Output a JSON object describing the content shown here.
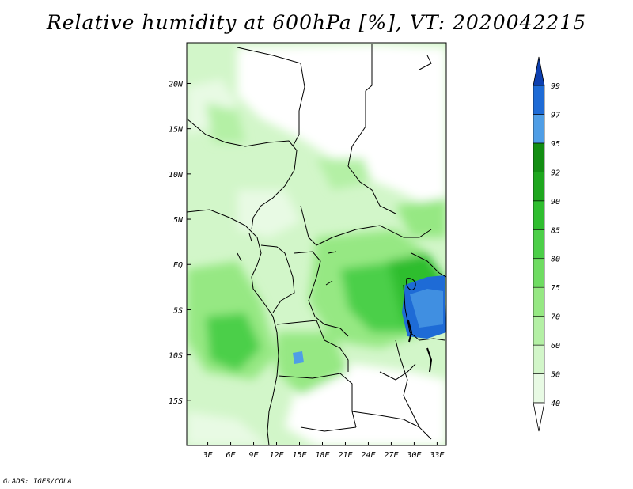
{
  "title": "Relative humidity at 600hPa [%], VT: 2020042215",
  "credit": "GrADS: IGES/COLA",
  "map": {
    "lat_labels": [
      "20N",
      "15N",
      "10N",
      "5N",
      "EQ",
      "5S",
      "10S",
      "15S"
    ],
    "lon_labels": [
      "3E",
      "6E",
      "9E",
      "12E",
      "15E",
      "18E",
      "21E",
      "24E",
      "27E",
      "30E",
      "33E"
    ],
    "lat_range": [
      -20,
      24.5
    ],
    "lon_range": [
      0.25,
      34.2
    ]
  },
  "colorbar": {
    "levels": [
      "40",
      "50",
      "60",
      "70",
      "75",
      "80",
      "85",
      "90",
      "92",
      "95",
      "97",
      "99"
    ],
    "colors": [
      "#ffffff",
      "#e8fae4",
      "#d2f6c9",
      "#b4f0a5",
      "#96e883",
      "#6fdc62",
      "#4ccf48",
      "#2fbe2f",
      "#1ea71e",
      "#138e13",
      "#4f9ee6",
      "#1e6bd6",
      "#0d3fb0"
    ]
  }
}
